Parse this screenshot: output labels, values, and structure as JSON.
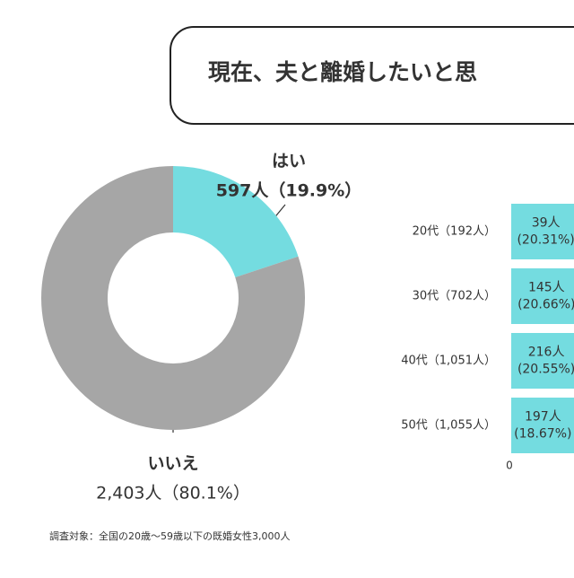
{
  "title": "現在、夫と離婚したいと思",
  "chart_data": [
    {
      "type": "pie",
      "categories": [
        "はい",
        "いいえ"
      ],
      "values": [
        19.9,
        80.1
      ],
      "value_labels": [
        "597人（19.9%）",
        "2,403人（80.1%）"
      ],
      "colors": [
        "#74dce0",
        "#a6a6a6"
      ]
    },
    {
      "type": "bar",
      "categories": [
        "20代（192人）",
        "30代（702人）",
        "40代（1,051人）",
        "50代（1,055人）"
      ],
      "values": [
        20.31,
        20.66,
        20.55,
        18.67
      ],
      "value_labels": [
        "39人\n(20.31%)",
        "145人\n(20.66%)",
        "216人\n(20.55%)",
        "197人\n(18.67%)"
      ],
      "color": "#74dce0",
      "xlim": [
        0,
        100
      ],
      "xticks": [
        0
      ]
    }
  ],
  "footnote": "調査対象：全国の20歳〜59歳以下の既婚女性3,000人"
}
